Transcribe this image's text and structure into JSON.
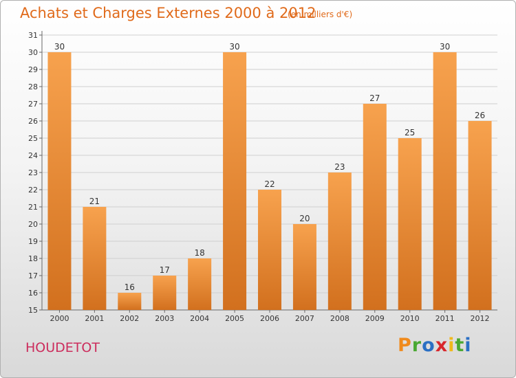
{
  "title": "Achats et Charges Externes 2000 à 2012",
  "subtitle": "(en milliers d'€)",
  "commune": "HOUDETOT",
  "brand": {
    "letters": [
      "P",
      "r",
      "o",
      "x",
      "i",
      "t",
      "i"
    ],
    "colors": [
      "#f08a1c",
      "#4aa832",
      "#2a6fc4",
      "#d8262c",
      "#f0b81c",
      "#4aa832",
      "#2a6fc4"
    ]
  },
  "colors": {
    "title": "#e06a1a",
    "bar_top": "#f7a24e",
    "bar_bottom": "#d2701e",
    "commune": "#cc2c5c"
  },
  "chart_data": {
    "type": "bar",
    "title": "Achats et Charges Externes 2000 à 2012",
    "subtitle": "(en milliers d'€)",
    "categories": [
      "2000",
      "2001",
      "2002",
      "2003",
      "2004",
      "2005",
      "2006",
      "2007",
      "2008",
      "2009",
      "2010",
      "2011",
      "2012"
    ],
    "values": [
      30,
      21,
      16,
      17,
      18,
      30,
      22,
      20,
      23,
      27,
      25,
      30,
      26
    ],
    "ylim": [
      15,
      31
    ],
    "yticks": [
      15,
      16,
      17,
      18,
      19,
      20,
      21,
      22,
      23,
      24,
      25,
      26,
      27,
      28,
      29,
      30,
      31
    ],
    "grid": true,
    "legend": "none"
  }
}
